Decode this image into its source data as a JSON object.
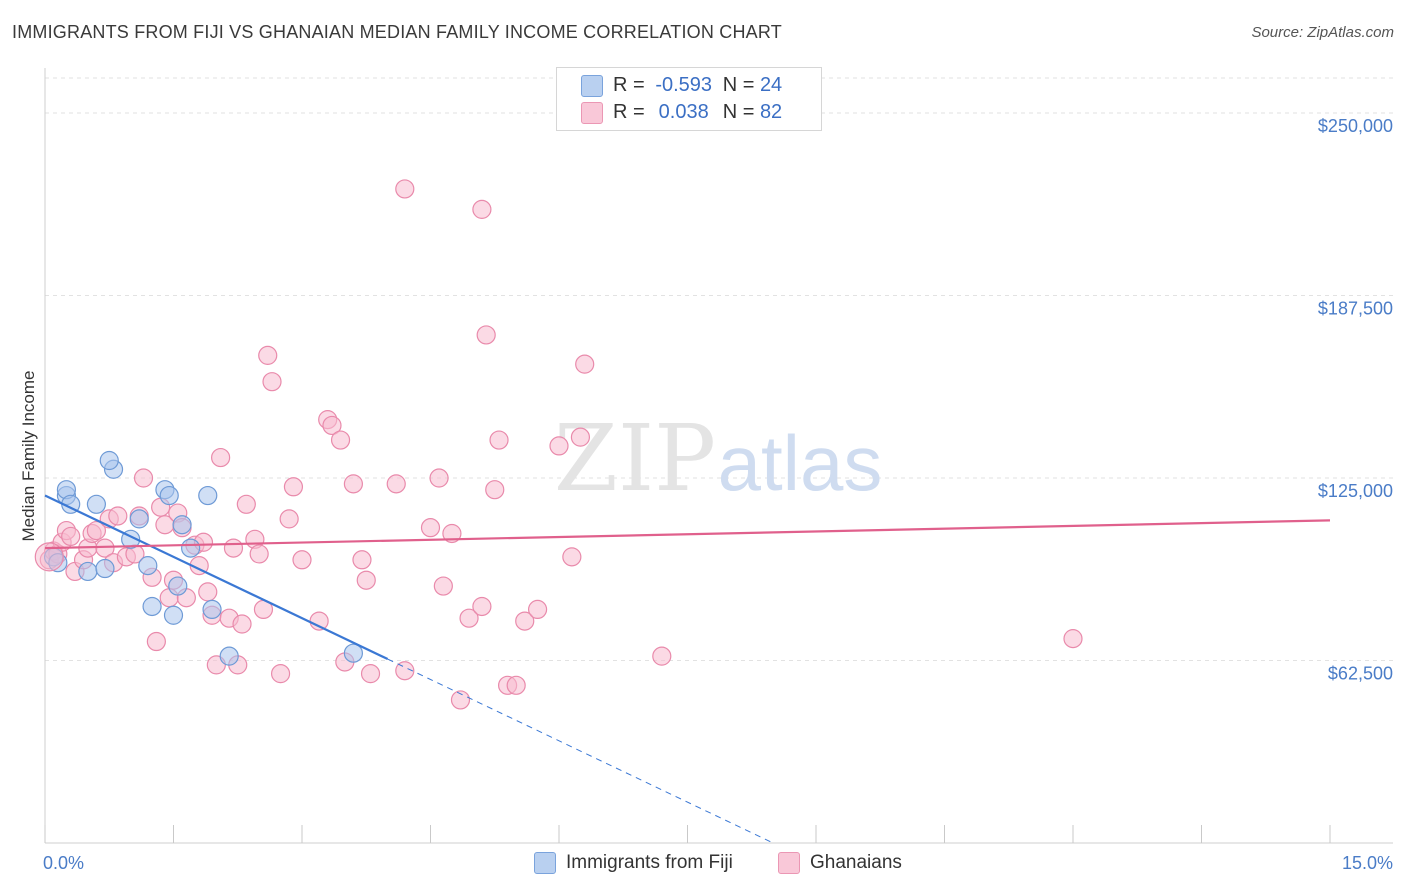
{
  "chart_data": {
    "type": "scatter",
    "title": "IMMIGRANTS FROM FIJI VS GHANAIAN MEDIAN FAMILY INCOME CORRELATION CHART",
    "source": "Source: ZipAtlas.com",
    "ylabel": "Median Family Income",
    "xlim": [
      0,
      15
    ],
    "ylim": [
      0,
      262000
    ],
    "x_tick_labels": [
      "0.0%",
      "15.0%"
    ],
    "y_ticks": [
      {
        "value": 62500,
        "label": "$62,500"
      },
      {
        "value": 125000,
        "label": "$125,000"
      },
      {
        "value": 187500,
        "label": "$187,500"
      },
      {
        "value": 250000,
        "label": "$250,000"
      }
    ],
    "watermark": {
      "zip": "ZIP",
      "atlas": "atlas"
    },
    "legend": {
      "r_label": "R =",
      "n_label": "N =",
      "entries": [
        {
          "r": "-0.593",
          "n": "24"
        },
        {
          "r": "0.038",
          "n": "82"
        }
      ]
    },
    "series": [
      {
        "name": "Immigrants from Fiji",
        "color": "#a9c4ec",
        "stroke": "#6e9ad6",
        "trend_color": "#3b78d4",
        "trend": {
          "x0": 0.0,
          "y0": 119000,
          "x1": 4.0,
          "y1": 63000,
          "dash_to_x": 8.5
        },
        "points": [
          [
            0.1,
            98000
          ],
          [
            0.25,
            119000
          ],
          [
            0.25,
            121000
          ],
          [
            0.3,
            116000
          ],
          [
            0.6,
            116000
          ],
          [
            0.5,
            93000
          ],
          [
            0.7,
            94000
          ],
          [
            0.8,
            128000
          ],
          [
            0.75,
            131000
          ],
          [
            1.0,
            104000
          ],
          [
            1.1,
            111000
          ],
          [
            1.2,
            95000
          ],
          [
            1.25,
            81000
          ],
          [
            1.4,
            121000
          ],
          [
            1.5,
            78000
          ],
          [
            1.55,
            88000
          ],
          [
            1.6,
            109000
          ],
          [
            1.7,
            101000
          ],
          [
            1.9,
            119000
          ],
          [
            1.95,
            80000
          ],
          [
            2.15,
            64000
          ],
          [
            3.6,
            65000
          ],
          [
            1.45,
            119000
          ],
          [
            0.15,
            96000
          ]
        ]
      },
      {
        "name": "Ghanaians",
        "color": "#f7bcd0",
        "stroke": "#e98aab",
        "trend_color": "#e0608c",
        "trend": {
          "x0": 0.0,
          "y0": 101000,
          "x1": 15.0,
          "y1": 110500
        },
        "points": [
          [
            0.05,
            97000
          ],
          [
            0.1,
            100000
          ],
          [
            0.15,
            99000
          ],
          [
            0.2,
            103000
          ],
          [
            0.25,
            107000
          ],
          [
            0.3,
            105000
          ],
          [
            0.35,
            93000
          ],
          [
            0.45,
            97000
          ],
          [
            0.5,
            101000
          ],
          [
            0.55,
            106000
          ],
          [
            0.6,
            107000
          ],
          [
            0.7,
            101000
          ],
          [
            0.75,
            111000
          ],
          [
            0.8,
            96000
          ],
          [
            0.85,
            112000
          ],
          [
            0.95,
            98000
          ],
          [
            1.05,
            99000
          ],
          [
            1.1,
            112000
          ],
          [
            1.15,
            125000
          ],
          [
            1.25,
            91000
          ],
          [
            1.3,
            69000
          ],
          [
            1.35,
            115000
          ],
          [
            1.4,
            109000
          ],
          [
            1.45,
            84000
          ],
          [
            1.5,
            90000
          ],
          [
            1.55,
            113000
          ],
          [
            1.6,
            108000
          ],
          [
            1.65,
            84000
          ],
          [
            1.75,
            102000
          ],
          [
            1.8,
            95000
          ],
          [
            1.85,
            103000
          ],
          [
            1.9,
            86000
          ],
          [
            1.95,
            78000
          ],
          [
            2.0,
            61000
          ],
          [
            2.05,
            132000
          ],
          [
            2.15,
            77000
          ],
          [
            2.2,
            101000
          ],
          [
            2.25,
            61000
          ],
          [
            2.3,
            75000
          ],
          [
            2.35,
            116000
          ],
          [
            2.45,
            104000
          ],
          [
            2.5,
            99000
          ],
          [
            2.55,
            80000
          ],
          [
            2.6,
            167000
          ],
          [
            2.65,
            158000
          ],
          [
            2.75,
            58000
          ],
          [
            2.85,
            111000
          ],
          [
            2.9,
            122000
          ],
          [
            3.0,
            97000
          ],
          [
            3.2,
            76000
          ],
          [
            3.3,
            145000
          ],
          [
            3.35,
            143000
          ],
          [
            3.45,
            138000
          ],
          [
            3.5,
            62000
          ],
          [
            3.6,
            123000
          ],
          [
            3.7,
            97000
          ],
          [
            3.75,
            90000
          ],
          [
            3.8,
            58000
          ],
          [
            4.1,
            123000
          ],
          [
            4.2,
            59000
          ],
          [
            4.2,
            224000
          ],
          [
            4.5,
            108000
          ],
          [
            4.6,
            125000
          ],
          [
            4.65,
            88000
          ],
          [
            4.75,
            106000
          ],
          [
            4.85,
            49000
          ],
          [
            4.95,
            77000
          ],
          [
            5.1,
            81000
          ],
          [
            5.1,
            217000
          ],
          [
            5.15,
            174000
          ],
          [
            5.25,
            121000
          ],
          [
            5.3,
            138000
          ],
          [
            5.4,
            54000
          ],
          [
            5.5,
            54000
          ],
          [
            5.6,
            76000
          ],
          [
            5.75,
            80000
          ],
          [
            6.0,
            136000
          ],
          [
            6.15,
            98000
          ],
          [
            6.25,
            139000
          ],
          [
            6.3,
            164000
          ],
          [
            7.2,
            64000
          ],
          [
            12.0,
            70000
          ]
        ]
      }
    ]
  }
}
